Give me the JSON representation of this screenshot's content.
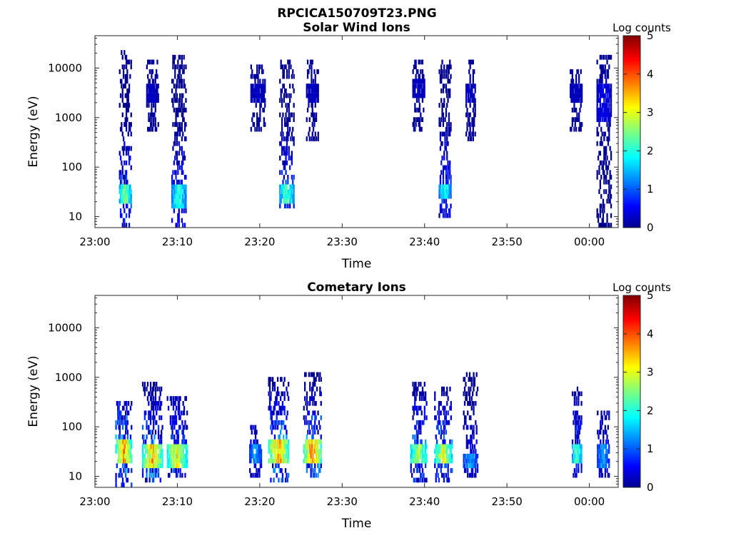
{
  "figure": {
    "title": "RPCICA150709T23.PNG"
  },
  "chart_data": [
    {
      "type": "heatmap",
      "title": "Solar Wind Ions",
      "xlabel": "Time",
      "ylabel": "Energy (eV)",
      "x_ticks": [
        "23:00",
        "23:10",
        "23:20",
        "23:30",
        "23:40",
        "23:50",
        "00:00"
      ],
      "x_tick_minutes": [
        0,
        10,
        20,
        30,
        40,
        50,
        60
      ],
      "xlim_minutes": [
        0,
        63.5
      ],
      "y_scale": "log",
      "ylim": [
        6,
        45000
      ],
      "y_ticks": [
        10,
        100,
        1000,
        10000
      ],
      "y_tick_labels": [
        "10",
        "100",
        "1000",
        "10000"
      ],
      "colorbar": {
        "label": "Log counts",
        "range": [
          0,
          5
        ],
        "ticks": [
          "0",
          "1",
          "2",
          "3",
          "4",
          "5"
        ],
        "colormap": "jet"
      },
      "bursts": [
        {
          "time_min": 3.7,
          "width_min": 1.5,
          "e_low": 6,
          "e_high": 22000,
          "peak_energy": 30,
          "peak_log_counts": 2.8,
          "core_low": 18,
          "core_high": 45
        },
        {
          "time_min": 7.0,
          "width_min": 1.5,
          "e_low": 500,
          "e_high": 15000,
          "peak_energy": 3000,
          "peak_log_counts": 0.3,
          "core_low": 2000,
          "core_high": 5000
        },
        {
          "time_min": 10.2,
          "width_min": 1.8,
          "e_low": 6,
          "e_high": 20000,
          "peak_energy": 25,
          "peak_log_counts": 2.3,
          "core_low": 15,
          "core_high": 40
        },
        {
          "time_min": 19.8,
          "width_min": 1.8,
          "e_low": 500,
          "e_high": 12000,
          "peak_energy": 3000,
          "peak_log_counts": 0.3,
          "core_low": 2000,
          "core_high": 5000
        },
        {
          "time_min": 23.3,
          "width_min": 1.8,
          "e_low": 15,
          "e_high": 15000,
          "peak_energy": 30,
          "peak_log_counts": 2.5,
          "core_low": 18,
          "core_high": 45
        },
        {
          "time_min": 26.4,
          "width_min": 1.5,
          "e_low": 300,
          "e_high": 15000,
          "peak_energy": 3000,
          "peak_log_counts": 0.3,
          "core_low": 2000,
          "core_high": 5000
        },
        {
          "time_min": 39.3,
          "width_min": 1.5,
          "e_low": 500,
          "e_high": 15000,
          "peak_energy": 4000,
          "peak_log_counts": 0.3,
          "core_low": 2500,
          "core_high": 6000
        },
        {
          "time_min": 42.5,
          "width_min": 1.5,
          "e_low": 10,
          "e_high": 15000,
          "peak_energy": 35,
          "peak_log_counts": 2.2,
          "core_low": 25,
          "core_high": 45
        },
        {
          "time_min": 45.6,
          "width_min": 1.2,
          "e_low": 300,
          "e_high": 15000,
          "peak_energy": 3000,
          "peak_log_counts": 0.3,
          "core_low": 2000,
          "core_high": 5000
        },
        {
          "time_min": 58.4,
          "width_min": 1.5,
          "e_low": 500,
          "e_high": 10000,
          "peak_energy": 3000,
          "peak_log_counts": 0.3,
          "core_low": 2000,
          "core_high": 5000
        },
        {
          "time_min": 61.8,
          "width_min": 1.8,
          "e_low": 6,
          "e_high": 20000,
          "peak_energy": 2000,
          "peak_log_counts": 0.5,
          "core_low": 800,
          "core_high": 5000
        }
      ]
    },
    {
      "type": "heatmap",
      "title": "Cometary Ions",
      "xlabel": "Time",
      "ylabel": "Energy (eV)",
      "x_ticks": [
        "23:00",
        "23:10",
        "23:20",
        "23:30",
        "23:40",
        "23:50",
        "00:00"
      ],
      "x_tick_minutes": [
        0,
        10,
        20,
        30,
        40,
        50,
        60
      ],
      "xlim_minutes": [
        0,
        63.5
      ],
      "y_scale": "log",
      "ylim": [
        6,
        45000
      ],
      "y_ticks": [
        10,
        100,
        1000,
        10000
      ],
      "y_tick_labels": [
        "10",
        "100",
        "1000",
        "10000"
      ],
      "colorbar": {
        "label": "Log counts",
        "range": [
          0,
          5
        ],
        "ticks": [
          "0",
          "1",
          "2",
          "3",
          "4",
          "5"
        ],
        "colormap": "jet"
      },
      "bursts": [
        {
          "time_min": 3.5,
          "width_min": 2.0,
          "e_low": 6,
          "e_high": 300,
          "peak_energy": 35,
          "peak_log_counts": 4.0,
          "core_low": 20,
          "core_high": 60
        },
        {
          "time_min": 7.0,
          "width_min": 2.5,
          "e_low": 8,
          "e_high": 800,
          "peak_energy": 25,
          "peak_log_counts": 3.8,
          "core_low": 15,
          "core_high": 40
        },
        {
          "time_min": 10.0,
          "width_min": 2.5,
          "e_low": 10,
          "e_high": 400,
          "peak_energy": 25,
          "peak_log_counts": 3.5,
          "core_low": 15,
          "core_high": 40
        },
        {
          "time_min": 19.5,
          "width_min": 1.5,
          "e_low": 10,
          "e_high": 100,
          "peak_energy": 30,
          "peak_log_counts": 1.5,
          "core_low": 18,
          "core_high": 45
        },
        {
          "time_min": 22.3,
          "width_min": 2.5,
          "e_low": 8,
          "e_high": 1000,
          "peak_energy": 30,
          "peak_log_counts": 4.0,
          "core_low": 18,
          "core_high": 50
        },
        {
          "time_min": 26.4,
          "width_min": 2.2,
          "e_low": 10,
          "e_high": 1200,
          "peak_energy": 30,
          "peak_log_counts": 4.2,
          "core_low": 18,
          "core_high": 50
        },
        {
          "time_min": 39.3,
          "width_min": 2.0,
          "e_low": 8,
          "e_high": 800,
          "peak_energy": 30,
          "peak_log_counts": 3.2,
          "core_low": 20,
          "core_high": 45
        },
        {
          "time_min": 42.3,
          "width_min": 2.2,
          "e_low": 8,
          "e_high": 700,
          "peak_energy": 30,
          "peak_log_counts": 3.4,
          "core_low": 20,
          "core_high": 45
        },
        {
          "time_min": 45.6,
          "width_min": 1.8,
          "e_low": 10,
          "e_high": 1200,
          "peak_energy": 20,
          "peak_log_counts": 1.5,
          "core_low": 15,
          "core_high": 30
        },
        {
          "time_min": 58.5,
          "width_min": 1.2,
          "e_low": 10,
          "e_high": 700,
          "peak_energy": 30,
          "peak_log_counts": 2.6,
          "core_low": 20,
          "core_high": 40
        },
        {
          "time_min": 61.7,
          "width_min": 1.5,
          "e_low": 10,
          "e_high": 200,
          "peak_energy": 25,
          "peak_log_counts": 1.5,
          "core_low": 15,
          "core_high": 40
        }
      ]
    }
  ]
}
